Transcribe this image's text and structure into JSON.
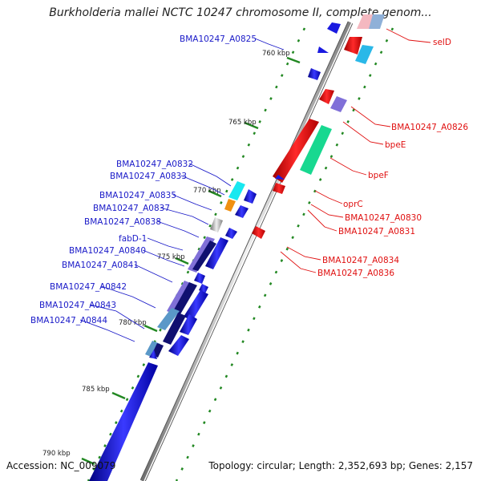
{
  "title": "Burkholderia mallei NCTC 10247 chromosome II, complete genom...",
  "footer": {
    "accession": "Accession: NC_009079",
    "summary": "Topology: circular; Length: 2,352,693 bp; Genes: 2,157"
  },
  "ticks": [
    "760 kbp",
    "765 kbp",
    "770 kbp",
    "775 kbp",
    "780 kbp",
    "785 kbp",
    "790 kbp"
  ],
  "labels_right": [
    "selD",
    "BMA10247_A0826",
    "bpeE",
    "bpeF",
    "oprC",
    "BMA10247_A0830",
    "BMA10247_A0831",
    "BMA10247_A0834",
    "BMA10247_A0836"
  ],
  "labels_left": [
    "BMA10247_A0825",
    "BMA10247_A0832",
    "BMA10247_A0833",
    "BMA10247_A0835",
    "BMA10247_A0837",
    "BMA10247_A0838",
    "fabD-1",
    "BMA10247_A0840",
    "BMA10247_A0841",
    "BMA10247_A0842",
    "BMA10247_A0843",
    "BMA10247_A0844"
  ],
  "colors": {
    "backbone": "#888888",
    "forward_gene": "#e01010",
    "reverse_gene": "#1a1ae0",
    "label_forward": "#e01010",
    "label_reverse": "#1a1ac8",
    "tick_mark": "#228822"
  }
}
